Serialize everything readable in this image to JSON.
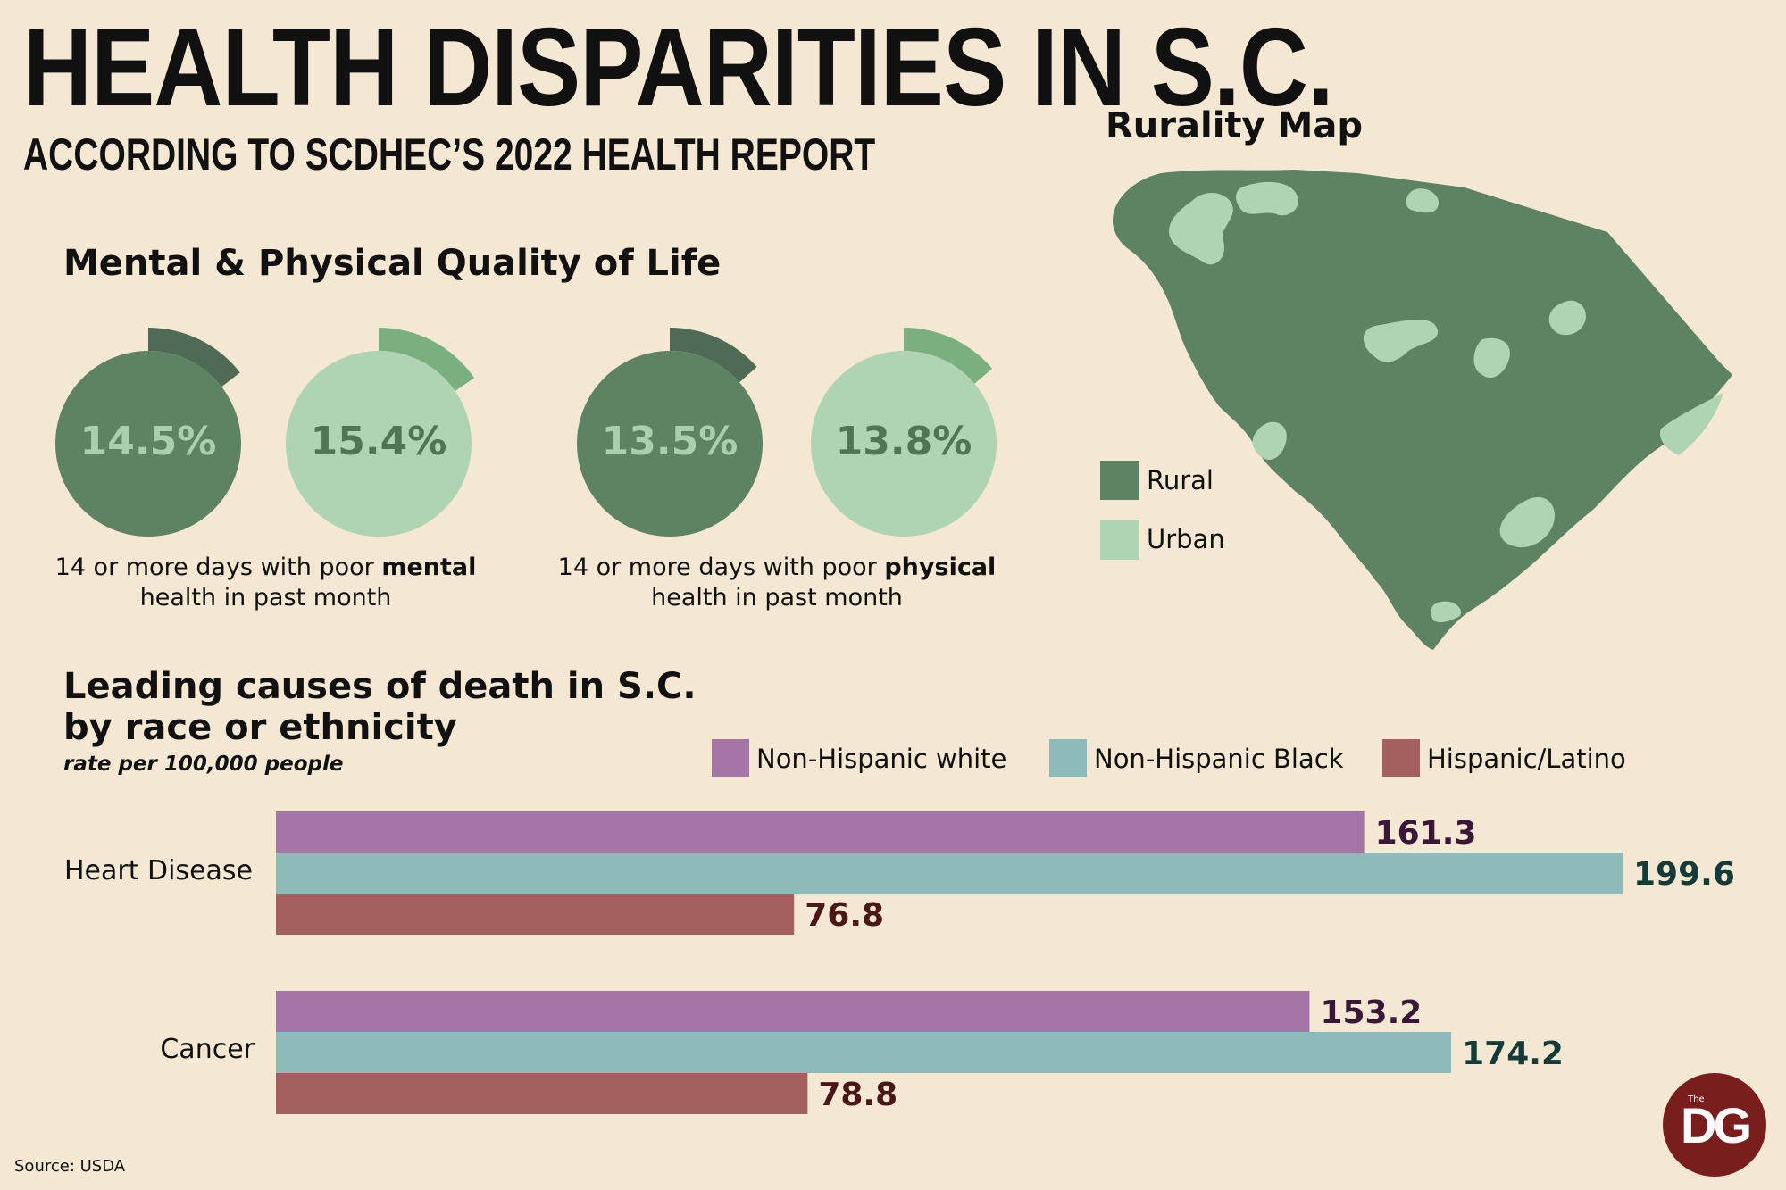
{
  "header": {
    "title": "HEALTH DISPARITIES IN S.C.",
    "subtitle": "ACCORDING TO SCDHEC’S 2022 HEALTH REPORT"
  },
  "quality_of_life": {
    "title": "Mental & Physical Quality of Life",
    "mental_caption_pre": "14 or more days with poor ",
    "mental_caption_bold": "mental",
    "mental_caption_post": "health in past month",
    "physical_caption_pre": "14 or more days with poor ",
    "physical_caption_bold": "physical",
    "physical_caption_post": "health in past month",
    "donuts": [
      {
        "label": "14.5%",
        "value": 14.5,
        "color": "#5d8264",
        "arc_color": "#4f6b55",
        "text_color": "#a8cfb0"
      },
      {
        "label": "15.4%",
        "value": 15.4,
        "color": "#afd4b3",
        "arc_color": "#7aaf80",
        "text_color": "#4e7656"
      },
      {
        "label": "13.5%",
        "value": 13.5,
        "color": "#5d8264",
        "arc_color": "#4f6b55",
        "text_color": "#a8cfb0"
      },
      {
        "label": "13.8%",
        "value": 13.8,
        "color": "#afd4b3",
        "arc_color": "#7aaf80",
        "text_color": "#4e7656"
      }
    ]
  },
  "map": {
    "title": "Rurality Map",
    "legend": [
      {
        "label": "Rural",
        "color": "#5d8264"
      },
      {
        "label": "Urban",
        "color": "#afd4b3"
      }
    ]
  },
  "deaths": {
    "title_line1": "Leading causes of death in S.C.",
    "title_line2": "by race or ethnicity",
    "note": "rate per 100,000 people"
  },
  "chart_data": {
    "type": "bar",
    "orientation": "horizontal",
    "categories": [
      "Heart Disease",
      "Cancer"
    ],
    "series": [
      {
        "name": "Non-Hispanic white",
        "values": [
          161.3,
          153.2
        ],
        "color": "#a675a8",
        "label_color": "#3a1638"
      },
      {
        "name": "Non-Hispanic Black",
        "values": [
          199.6,
          174.2
        ],
        "color": "#8dbbb9",
        "label_color": "#123b39"
      },
      {
        "name": "Hispanic/Latino",
        "values": [
          76.8,
          78.8
        ],
        "color": "#a65f5f",
        "label_color": "#4a1616"
      }
    ],
    "value_labels": [
      [
        "161.3",
        "153.2"
      ],
      [
        "199.6",
        "174.2"
      ],
      [
        "76.8",
        "78.8"
      ]
    ],
    "title": "Leading causes of death in S.C. by race or ethnicity",
    "xlabel": "rate per 100,000 people",
    "xlim": [
      0,
      199.6
    ]
  },
  "footer": {
    "source": "Source: USDA",
    "logo_small": "The",
    "logo_text": "DG"
  }
}
